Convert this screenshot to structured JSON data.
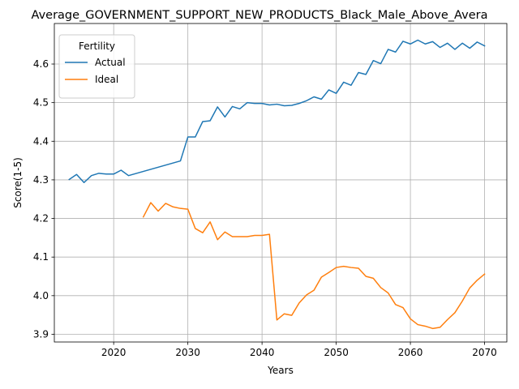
{
  "chart_data": {
    "type": "line",
    "title": "Average_GOVERNMENT_SUPPORT_NEW_PRODUCTS_Black_Male_Above_Avera",
    "xlabel": "Years",
    "ylabel": "Score(1-5)",
    "xlim": [
      2012,
      2073
    ],
    "ylim": [
      3.88,
      4.705
    ],
    "xticks": [
      2020,
      2030,
      2040,
      2050,
      2060,
      2070
    ],
    "yticks": [
      3.9,
      4.0,
      4.1,
      4.2,
      4.3,
      4.4,
      4.5,
      4.6
    ],
    "grid": true,
    "legend": {
      "title": "Fertility",
      "placement": "top-left"
    },
    "series": [
      {
        "name": "Actual",
        "color": "#1f77b4",
        "x": [
          2014,
          2015,
          2016,
          2017,
          2018,
          2019,
          2020,
          2021,
          2022,
          2029,
          2030,
          2031,
          2032,
          2033,
          2034,
          2035,
          2036,
          2037,
          2038,
          2039,
          2040,
          2041,
          2042,
          2043,
          2044,
          2045,
          2046,
          2047,
          2048,
          2049,
          2050,
          2051,
          2052,
          2053,
          2054,
          2055,
          2056,
          2057,
          2058,
          2059,
          2060,
          2061,
          2062,
          2063,
          2064,
          2065,
          2066,
          2067,
          2068,
          2069,
          2070
        ],
        "y": [
          4.301,
          4.314,
          4.293,
          4.311,
          4.317,
          4.315,
          4.315,
          4.325,
          4.311,
          4.349,
          4.411,
          4.411,
          4.451,
          4.453,
          4.489,
          4.463,
          4.49,
          4.484,
          4.5,
          4.498,
          4.498,
          4.494,
          4.496,
          4.492,
          4.493,
          4.498,
          4.505,
          4.515,
          4.509,
          4.533,
          4.524,
          4.553,
          4.545,
          4.578,
          4.573,
          4.609,
          4.601,
          4.638,
          4.631,
          4.659,
          4.652,
          4.662,
          4.652,
          4.658,
          4.643,
          4.654,
          4.638,
          4.654,
          4.641,
          4.657,
          4.647
        ]
      },
      {
        "name": "Ideal",
        "color": "#ff7f0e",
        "x": [
          2024,
          2025,
          2026,
          2027,
          2028,
          2029,
          2030,
          2031,
          2032,
          2033,
          2034,
          2035,
          2036,
          2037,
          2038,
          2039,
          2040,
          2041,
          2042,
          2043,
          2044,
          2045,
          2046,
          2047,
          2048,
          2049,
          2050,
          2051,
          2052,
          2053,
          2054,
          2055,
          2056,
          2057,
          2058,
          2059,
          2060,
          2061,
          2062,
          2063,
          2064,
          2065,
          2066,
          2067,
          2068,
          2069,
          2070
        ],
        "y": [
          4.204,
          4.241,
          4.219,
          4.239,
          4.23,
          4.226,
          4.224,
          4.174,
          4.163,
          4.191,
          4.145,
          4.165,
          4.153,
          4.153,
          4.153,
          4.156,
          4.156,
          4.159,
          3.937,
          3.953,
          3.949,
          3.981,
          4.002,
          4.014,
          4.048,
          4.06,
          4.073,
          4.076,
          4.073,
          4.071,
          4.05,
          4.045,
          4.021,
          4.007,
          3.977,
          3.969,
          3.94,
          3.925,
          3.921,
          3.915,
          3.918,
          3.938,
          3.956,
          3.986,
          4.02,
          4.04,
          4.056
        ]
      }
    ]
  }
}
